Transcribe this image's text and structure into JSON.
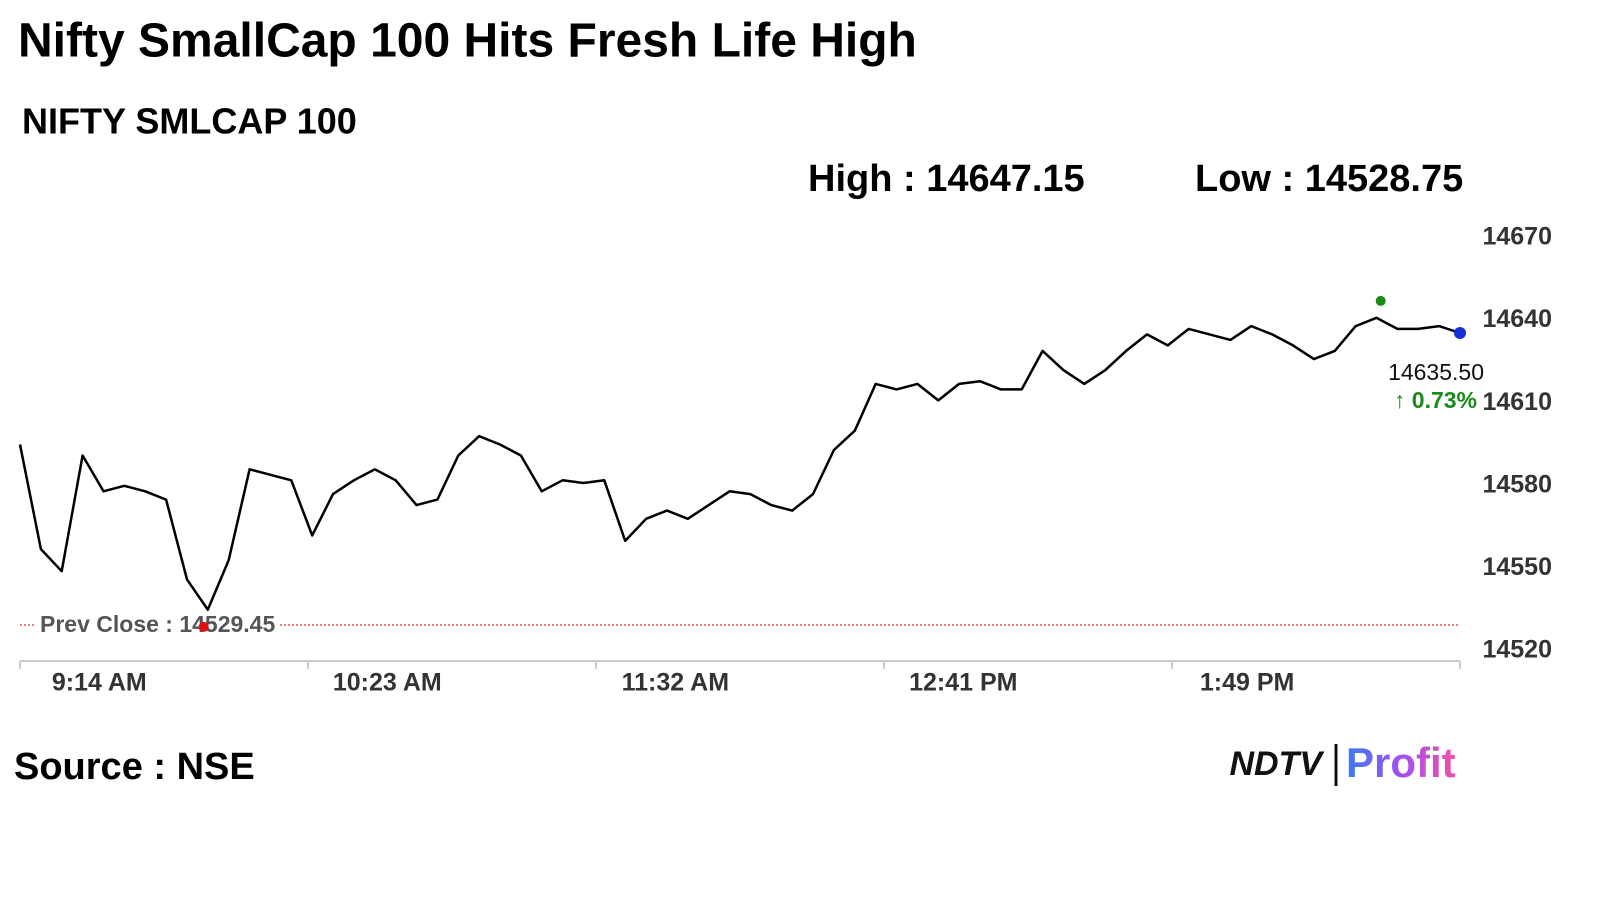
{
  "chart_data": {
    "type": "line",
    "title": "Nifty SmallCap 100 Hits Fresh Life High",
    "subtitle": "NIFTY SMLCAP 100",
    "high": {
      "value": 14647.15,
      "label": "High : 14647.15",
      "x": "2:21 PM"
    },
    "low": {
      "value": 14528.75,
      "label": "Low : 14528.75",
      "x": "9:39 AM"
    },
    "prev_close": {
      "value": 14529.45,
      "label": "Prev Close : 14529.45"
    },
    "last": {
      "value": 14635.5,
      "label": "14635.50",
      "change": "↑ 0.73%"
    },
    "source": "Source : NSE",
    "logo": [
      "NDTV",
      "Profit"
    ],
    "x": [
      "8:55 AM",
      "9:00 AM",
      "9:05 AM",
      "9:10 AM",
      "9:15 AM",
      "9:20 AM",
      "9:25 AM",
      "9:30 AM",
      "9:35 AM",
      "9:40 AM",
      "9:45 AM",
      "9:50 AM",
      "9:55 AM",
      "10:00 AM",
      "10:05 AM",
      "10:10 AM",
      "10:15 AM",
      "10:20 AM",
      "10:25 AM",
      "10:30 AM",
      "10:35 AM",
      "10:40 AM",
      "10:45 AM",
      "10:50 AM",
      "10:55 AM",
      "11:00 AM",
      "11:05 AM",
      "11:10 AM",
      "11:15 AM",
      "11:20 AM",
      "11:25 AM",
      "11:30 AM",
      "11:35 AM",
      "11:40 AM",
      "11:45 AM",
      "11:50 AM",
      "11:55 AM",
      "12:00 PM",
      "12:05 PM",
      "12:10 PM",
      "12:15 PM",
      "12:20 PM",
      "12:25 PM",
      "12:30 PM",
      "12:35 PM",
      "12:40 PM",
      "12:45 PM",
      "12:50 PM",
      "12:55 PM",
      "1:00 PM",
      "1:05 PM",
      "1:10 PM",
      "1:15 PM",
      "1:20 PM",
      "1:25 PM",
      "1:30 PM",
      "1:35 PM",
      "1:40 PM",
      "1:45 PM",
      "1:50 PM",
      "1:55 PM",
      "2:00 PM",
      "2:05 PM",
      "2:10 PM",
      "2:15 PM",
      "2:20 PM",
      "2:25 PM",
      "2:30 PM",
      "2:35 PM",
      "2:40 PM"
    ],
    "series": [
      {
        "name": "NIFTY SMLCAP 100",
        "color": "#000000",
        "values": [
          14595,
          14557,
          14549,
          14591,
          14578,
          14580,
          14578,
          14575,
          14546,
          14535,
          14553,
          14586,
          14584,
          14582,
          14562,
          14577,
          14582,
          14586,
          14582,
          14573,
          14575,
          14591,
          14598,
          14595,
          14591,
          14578,
          14582,
          14581,
          14582,
          14560,
          14568,
          14571,
          14568,
          14573,
          14578,
          14577,
          14573,
          14571,
          14577,
          14593,
          14600,
          14617,
          14615,
          14617,
          14611,
          14617,
          14618,
          14615,
          14615,
          14629,
          14622,
          14617,
          14622,
          14629,
          14635,
          14631,
          14637,
          14635,
          14633,
          14638,
          14635,
          14631,
          14626,
          14629,
          14638,
          14641,
          14637,
          14637,
          14638,
          14635.5
        ]
      }
    ],
    "xlim": [
      "8:55 AM",
      "2:40 PM"
    ],
    "xticks": [
      "9:14 AM",
      "10:23 AM",
      "11:32 AM",
      "12:41 PM",
      "1:49 PM"
    ],
    "ylim": [
      14520,
      14670
    ],
    "yticks": [
      14520,
      14550,
      14580,
      14610,
      14640,
      14670
    ]
  }
}
